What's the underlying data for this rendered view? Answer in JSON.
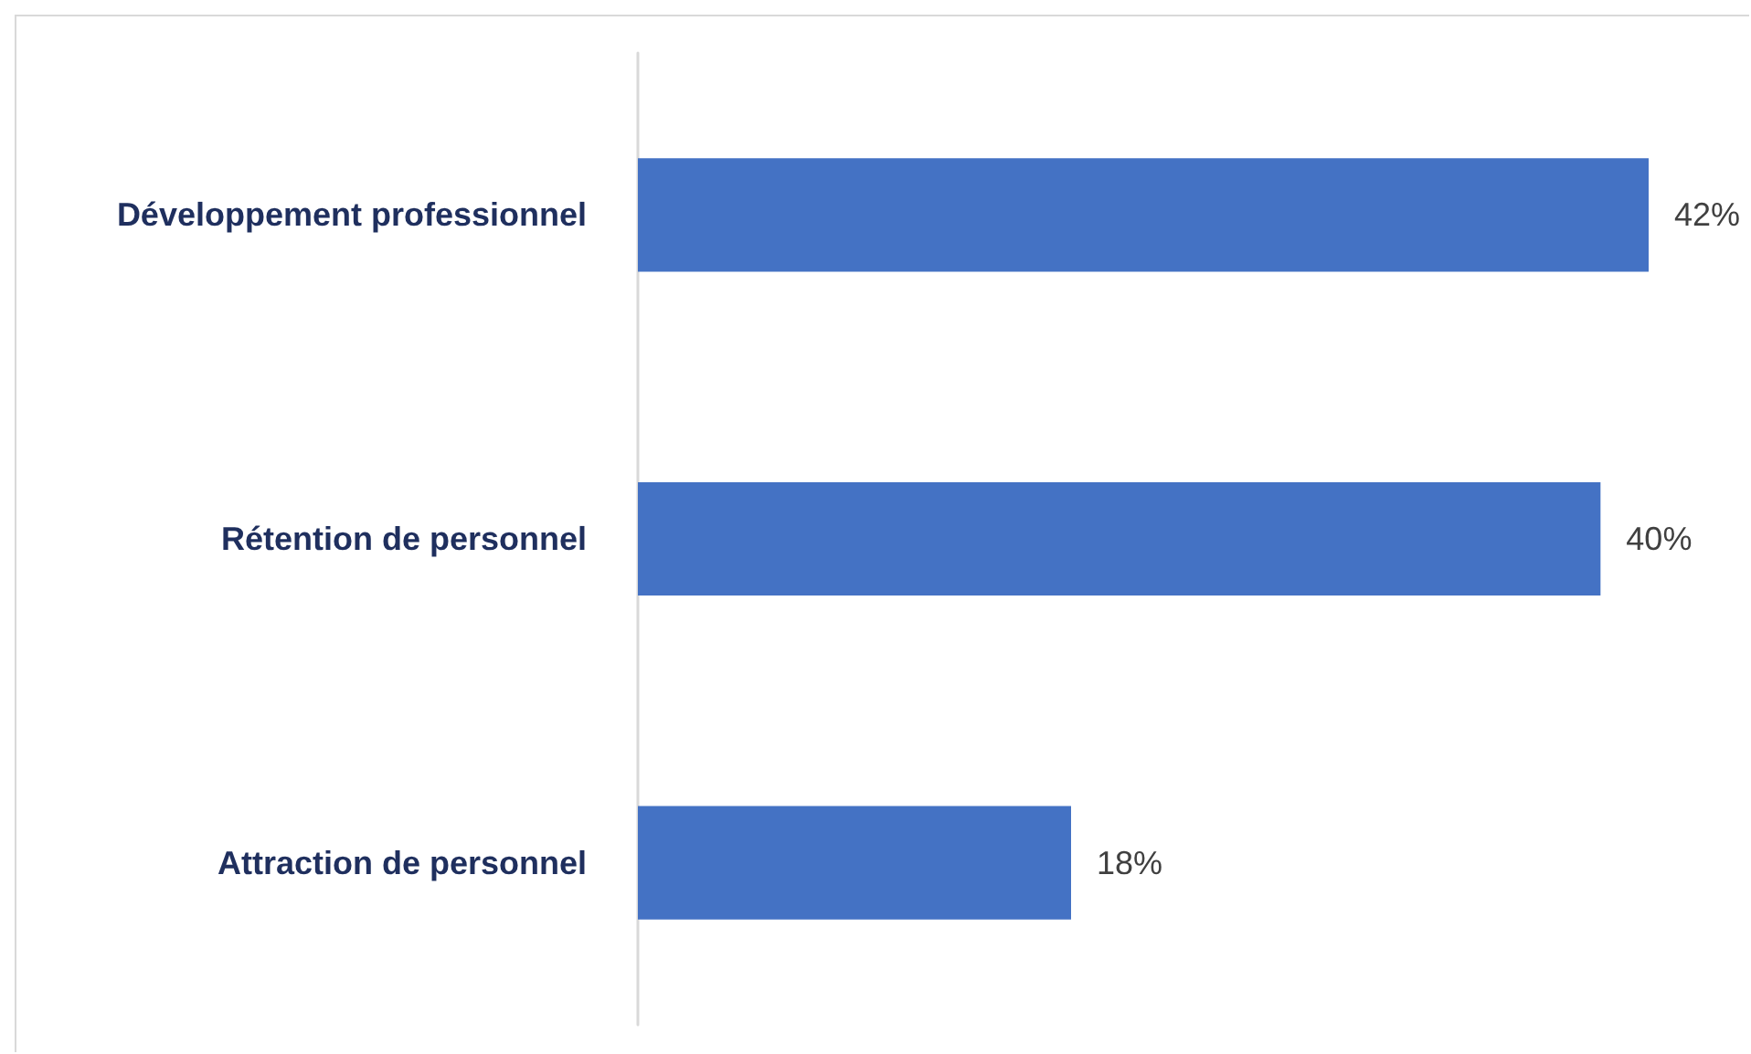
{
  "chart_data": {
    "type": "bar",
    "orientation": "horizontal",
    "categories": [
      "Développement professionnel",
      "Rétention de personnel",
      "Attraction de personnel"
    ],
    "values": [
      42,
      40,
      18
    ],
    "color": "#4472c4",
    "value_labels": [
      "42%",
      "40%",
      "18%"
    ],
    "tick_labels": "y",
    "grid": false
  }
}
